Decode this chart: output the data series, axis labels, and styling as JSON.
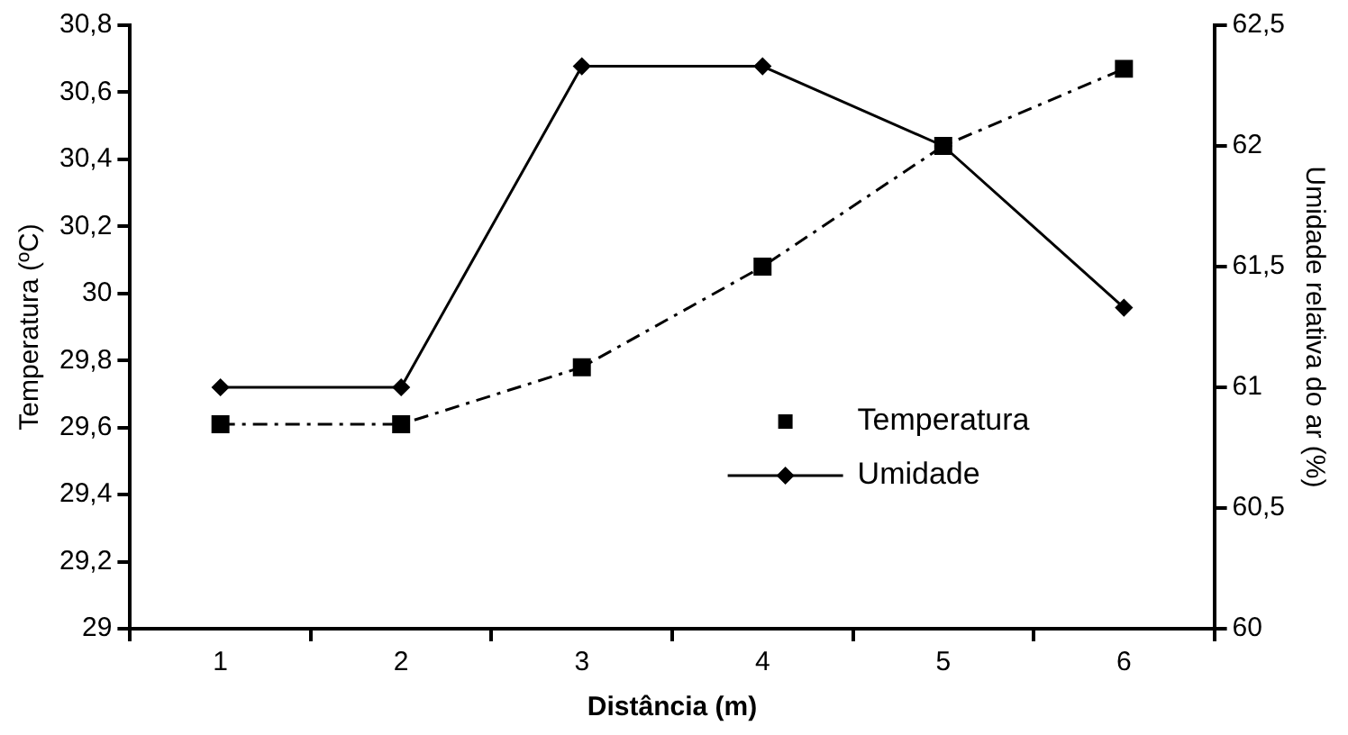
{
  "chart_data": {
    "type": "line",
    "xlabel": "Distância (m)",
    "ylabel": "Temperatura (ºC)",
    "y2label": "Umidade relativa do ar (%)",
    "categories": [
      "1",
      "2",
      "3",
      "4",
      "5",
      "6"
    ],
    "series": [
      {
        "name": "Temperatura",
        "color": "#000000",
        "values": [
          29.61,
          29.61,
          29.78,
          30.08,
          30.44,
          30.67
        ],
        "marker": "square",
        "line_style": "dashed"
      },
      {
        "name": "Umidade",
        "color": "#000000",
        "values": [
          61,
          61,
          62.33,
          62.33,
          62,
          61.33
        ],
        "axis": "y2",
        "marker": "diamond",
        "line_style": "solid"
      }
    ],
    "ylim": [
      29,
      30.8
    ],
    "yticks": [
      29,
      {
        "value": 29.2,
        "label": "29,2"
      },
      {
        "value": 29.4,
        "label": "29,4"
      },
      {
        "value": 29.6,
        "label": "29,6"
      },
      {
        "value": 29.8,
        "label": "29,8"
      },
      30,
      {
        "value": 30.2,
        "label": "30,2"
      },
      {
        "value": 30.4,
        "label": "30,4"
      },
      {
        "value": 30.6,
        "label": "30,6"
      },
      {
        "value": 30.8,
        "label": "30,8"
      }
    ],
    "y2lim": [
      60,
      62.5
    ],
    "y2ticks": [
      60,
      {
        "value": 60.5,
        "label": "60,5"
      },
      61,
      {
        "value": 61.5,
        "label": "61,5"
      },
      62,
      {
        "value": 62.5,
        "label": "62,5"
      }
    ],
    "grid": false,
    "legend": "bottom right"
  }
}
